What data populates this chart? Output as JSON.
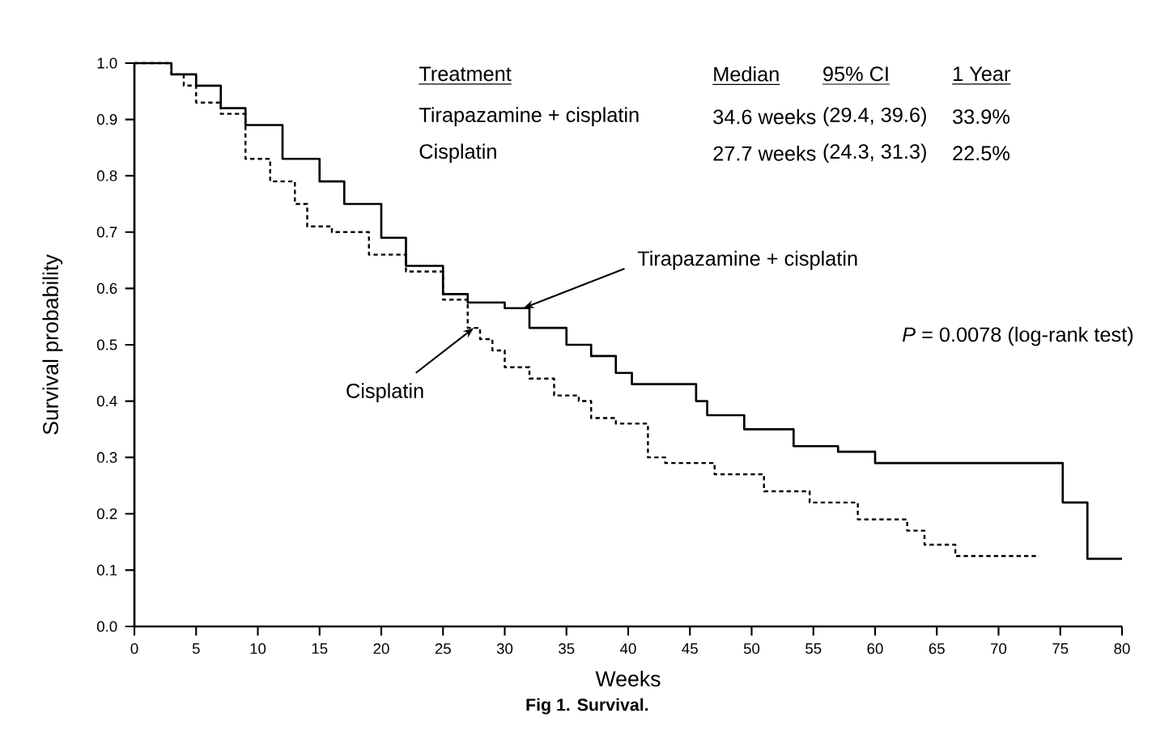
{
  "chart_data": {
    "type": "step",
    "xlabel": "Weeks",
    "ylabel": "Survival probability",
    "xlim": [
      0,
      80
    ],
    "xticks": [
      0,
      5,
      10,
      15,
      20,
      25,
      30,
      35,
      40,
      45,
      50,
      55,
      60,
      65,
      70,
      75,
      80
    ],
    "ylim": [
      0,
      1.0
    ],
    "yticks": [
      {
        "value": 0,
        "label": "0.0"
      },
      0.1,
      0.2,
      0.3,
      0.4,
      0.5,
      0.6,
      0.7,
      0.8,
      0.9,
      {
        "value": 1,
        "label": "1.0"
      }
    ],
    "grid": false,
    "marker": "none",
    "series": [
      {
        "color": "#000000",
        "line_style": "solid",
        "x": [
          0,
          2,
          3,
          5,
          7,
          9,
          10,
          12,
          15,
          17,
          20,
          22,
          25,
          27,
          30,
          32,
          35,
          37,
          39,
          40.3,
          45.5,
          46.4,
          49.4,
          53.4,
          57,
          60,
          75.2,
          77.2,
          80
        ],
        "values": [
          1.0,
          1.0,
          0.98,
          0.96,
          0.92,
          0.89,
          0.89,
          0.83,
          0.79,
          0.75,
          0.69,
          0.64,
          0.59,
          0.575,
          0.565,
          0.53,
          0.5,
          0.48,
          0.45,
          0.43,
          0.4,
          0.375,
          0.35,
          0.32,
          0.31,
          0.29,
          0.22,
          0.12,
          0.12
        ]
      },
      {
        "color": "#000000",
        "line_style": "dashed",
        "x": [
          0,
          3,
          4,
          5,
          7,
          9,
          11,
          13,
          14,
          16,
          19,
          22,
          25,
          27,
          28,
          29,
          30,
          32,
          34,
          36,
          37,
          39,
          41.6,
          43,
          47,
          51,
          54.7,
          58.6,
          62.6,
          64,
          66.5,
          73.3
        ],
        "values": [
          1.0,
          0.98,
          0.96,
          0.93,
          0.91,
          0.83,
          0.79,
          0.75,
          0.71,
          0.7,
          0.66,
          0.63,
          0.58,
          0.53,
          0.51,
          0.49,
          0.46,
          0.44,
          0.41,
          0.4,
          0.37,
          0.36,
          0.3,
          0.29,
          0.27,
          0.24,
          0.22,
          0.19,
          0.17,
          0.145,
          0.125,
          0.125
        ]
      }
    ],
    "annotations": [
      "Treatment",
      "Median",
      "95% CI",
      "1 Year",
      "Tirapazamine + cisplatin",
      "34.6 weeks",
      "(29.4, 39.6)",
      "33.9%",
      "Cisplatin",
      "27.7 weeks",
      "(24.3, 31.3)",
      "22.5%",
      "*P* = 0.0078 (log-rank test)",
      {
        "text": "Tirapazamine + cisplatin",
        "x": 31.5,
        "y": 0.565
      },
      {
        "text": "Cisplatin",
        "x": 27.5,
        "y": 0.53
      },
      "Fig 1.  Survival."
    ]
  }
}
